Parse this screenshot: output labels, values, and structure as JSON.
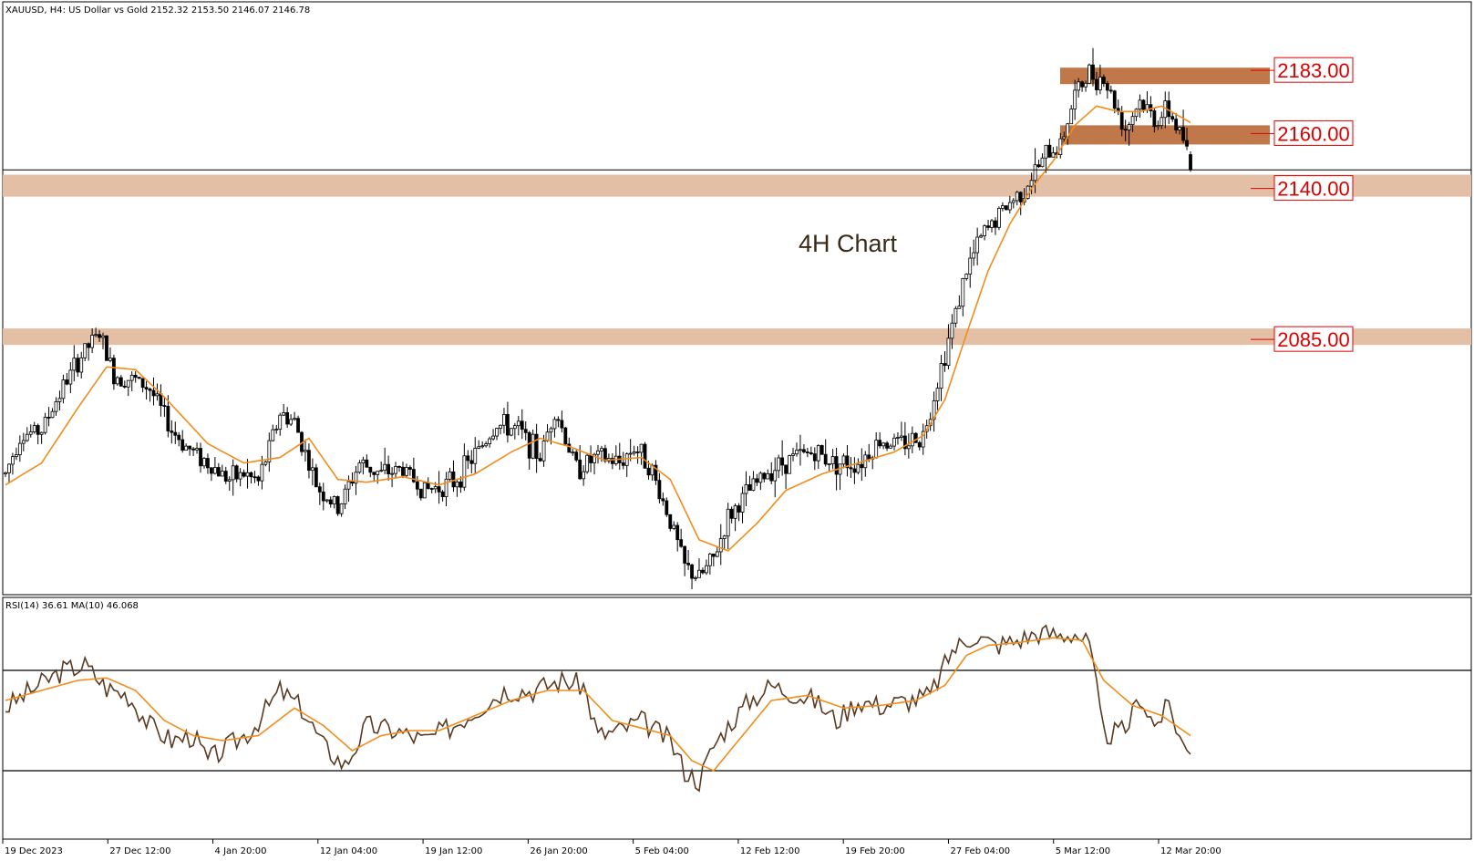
{
  "chart_data": {
    "type": "candlestick",
    "title": "XAUUSD, H4:  US Dollar vs Gold  2152.32 2153.50 2146.07 2146.78",
    "annotation": "4H Chart",
    "x_ticks": [
      "19 Dec 2023",
      "27 Dec 12:00",
      "4 Jan 20:00",
      "12 Jan 04:00",
      "19 Jan 12:00",
      "26 Jan 20:00",
      "5 Feb 04:00",
      "12 Feb 12:00",
      "19 Feb 20:00",
      "27 Feb 04:00",
      "5 Mar 12:00",
      "12 Mar 20:00"
    ],
    "price_range": [
      2000,
      2200
    ],
    "current_price": 2146.78,
    "last_bar": {
      "open": 2152.32,
      "high": 2153.5,
      "low": 2146.07,
      "close": 2146.78
    },
    "levels": [
      {
        "label": "2183.00",
        "value": 2183.0,
        "zone": [
          2178,
          2184
        ],
        "style": "dark"
      },
      {
        "label": "2160.00",
        "value": 2160.0,
        "zone": [
          2156,
          2163
        ],
        "style": "dark"
      },
      {
        "label": "2140.00",
        "value": 2140.0,
        "zone": [
          2137,
          2145
        ],
        "style": "light"
      },
      {
        "label": "2085.00",
        "value": 2085.0,
        "zone": [
          2083,
          2089
        ],
        "style": "light"
      }
    ],
    "price_path": [
      [
        0,
        2036
      ],
      [
        4,
        2050
      ],
      [
        10,
        2052
      ],
      [
        16,
        2068
      ],
      [
        22,
        2081
      ],
      [
        26,
        2087
      ],
      [
        30,
        2072
      ],
      [
        36,
        2070
      ],
      [
        40,
        2067
      ],
      [
        46,
        2052
      ],
      [
        50,
        2046
      ],
      [
        56,
        2040
      ],
      [
        62,
        2034
      ],
      [
        66,
        2036
      ],
      [
        70,
        2033
      ],
      [
        76,
        2058
      ],
      [
        80,
        2055
      ],
      [
        86,
        2032
      ],
      [
        92,
        2023
      ],
      [
        98,
        2040
      ],
      [
        104,
        2036
      ],
      [
        110,
        2038
      ],
      [
        116,
        2030
      ],
      [
        124,
        2033
      ],
      [
        130,
        2043
      ],
      [
        136,
        2054
      ],
      [
        142,
        2052
      ],
      [
        148,
        2042
      ],
      [
        152,
        2060
      ],
      [
        158,
        2038
      ],
      [
        164,
        2042
      ],
      [
        170,
        2040
      ],
      [
        174,
        2046
      ],
      [
        178,
        2040
      ],
      [
        184,
        2019
      ],
      [
        188,
        2002
      ],
      [
        192,
        1998
      ],
      [
        196,
        2005
      ],
      [
        200,
        2020
      ],
      [
        206,
        2030
      ],
      [
        212,
        2038
      ],
      [
        218,
        2042
      ],
      [
        224,
        2044
      ],
      [
        230,
        2040
      ],
      [
        236,
        2040
      ],
      [
        242,
        2048
      ],
      [
        248,
        2047
      ],
      [
        254,
        2050
      ],
      [
        260,
        2080
      ],
      [
        266,
        2110
      ],
      [
        270,
        2122
      ],
      [
        276,
        2132
      ],
      [
        282,
        2140
      ],
      [
        288,
        2152
      ],
      [
        292,
        2156
      ],
      [
        296,
        2174
      ],
      [
        300,
        2182
      ],
      [
        304,
        2180
      ],
      [
        308,
        2168
      ],
      [
        310,
        2162
      ],
      [
        314,
        2172
      ],
      [
        318,
        2165
      ],
      [
        322,
        2168
      ],
      [
        326,
        2158
      ],
      [
        328,
        2148
      ]
    ],
    "ma_path": [
      [
        0,
        2032
      ],
      [
        10,
        2040
      ],
      [
        20,
        2060
      ],
      [
        28,
        2075
      ],
      [
        36,
        2074
      ],
      [
        44,
        2064
      ],
      [
        56,
        2047
      ],
      [
        66,
        2040
      ],
      [
        76,
        2042
      ],
      [
        84,
        2049
      ],
      [
        92,
        2034
      ],
      [
        100,
        2033
      ],
      [
        110,
        2035
      ],
      [
        120,
        2032
      ],
      [
        130,
        2036
      ],
      [
        140,
        2044
      ],
      [
        148,
        2049
      ],
      [
        156,
        2046
      ],
      [
        166,
        2041
      ],
      [
        176,
        2042
      ],
      [
        184,
        2034
      ],
      [
        192,
        2012
      ],
      [
        200,
        2008
      ],
      [
        208,
        2018
      ],
      [
        216,
        2030
      ],
      [
        226,
        2036
      ],
      [
        236,
        2040
      ],
      [
        246,
        2044
      ],
      [
        254,
        2050
      ],
      [
        260,
        2063
      ],
      [
        266,
        2087
      ],
      [
        272,
        2110
      ],
      [
        278,
        2127
      ],
      [
        284,
        2140
      ],
      [
        290,
        2150
      ],
      [
        296,
        2163
      ],
      [
        302,
        2170
      ],
      [
        308,
        2168
      ],
      [
        314,
        2168
      ],
      [
        320,
        2170
      ],
      [
        328,
        2164
      ]
    ],
    "rsi": {
      "label": "RSI(14) 36.61 MA(10) 46.068",
      "range": [
        0,
        100
      ],
      "levels": [
        70,
        30
      ],
      "rsi_path": [
        [
          0,
          55
        ],
        [
          8,
          63
        ],
        [
          16,
          70
        ],
        [
          22,
          72
        ],
        [
          28,
          63
        ],
        [
          34,
          60
        ],
        [
          40,
          48
        ],
        [
          46,
          42
        ],
        [
          52,
          44
        ],
        [
          56,
          34
        ],
        [
          62,
          40
        ],
        [
          68,
          46
        ],
        [
          76,
          62
        ],
        [
          82,
          55
        ],
        [
          88,
          40
        ],
        [
          94,
          32
        ],
        [
          100,
          48
        ],
        [
          108,
          46
        ],
        [
          116,
          42
        ],
        [
          124,
          48
        ],
        [
          130,
          54
        ],
        [
          138,
          62
        ],
        [
          146,
          62
        ],
        [
          154,
          66
        ],
        [
          160,
          64
        ],
        [
          164,
          44
        ],
        [
          170,
          46
        ],
        [
          176,
          50
        ],
        [
          184,
          42
        ],
        [
          188,
          30
        ],
        [
          192,
          26
        ],
        [
          196,
          40
        ],
        [
          200,
          48
        ],
        [
          206,
          58
        ],
        [
          212,
          64
        ],
        [
          218,
          61
        ],
        [
          224,
          58
        ],
        [
          230,
          50
        ],
        [
          236,
          58
        ],
        [
          242,
          56
        ],
        [
          250,
          58
        ],
        [
          256,
          60
        ],
        [
          262,
          78
        ],
        [
          268,
          84
        ],
        [
          274,
          80
        ],
        [
          280,
          82
        ],
        [
          286,
          85
        ],
        [
          292,
          84
        ],
        [
          296,
          85
        ],
        [
          300,
          80
        ],
        [
          304,
          44
        ],
        [
          310,
          46
        ],
        [
          314,
          60
        ],
        [
          318,
          48
        ],
        [
          322,
          56
        ],
        [
          326,
          40
        ],
        [
          328,
          36.6
        ]
      ],
      "ma_path": [
        [
          0,
          58
        ],
        [
          10,
          62
        ],
        [
          20,
          66
        ],
        [
          28,
          67
        ],
        [
          36,
          62
        ],
        [
          44,
          50
        ],
        [
          52,
          44
        ],
        [
          60,
          42
        ],
        [
          70,
          44
        ],
        [
          80,
          55
        ],
        [
          88,
          48
        ],
        [
          96,
          38
        ],
        [
          104,
          44
        ],
        [
          112,
          46
        ],
        [
          120,
          46
        ],
        [
          130,
          52
        ],
        [
          140,
          58
        ],
        [
          150,
          62
        ],
        [
          160,
          62
        ],
        [
          168,
          50
        ],
        [
          176,
          47
        ],
        [
          184,
          44
        ],
        [
          190,
          34
        ],
        [
          196,
          30
        ],
        [
          204,
          44
        ],
        [
          212,
          58
        ],
        [
          222,
          60
        ],
        [
          232,
          55
        ],
        [
          242,
          56
        ],
        [
          252,
          58
        ],
        [
          260,
          64
        ],
        [
          266,
          76
        ],
        [
          272,
          80
        ],
        [
          280,
          81
        ],
        [
          290,
          83
        ],
        [
          298,
          82
        ],
        [
          304,
          66
        ],
        [
          312,
          56
        ],
        [
          320,
          52
        ],
        [
          328,
          44
        ]
      ]
    }
  }
}
